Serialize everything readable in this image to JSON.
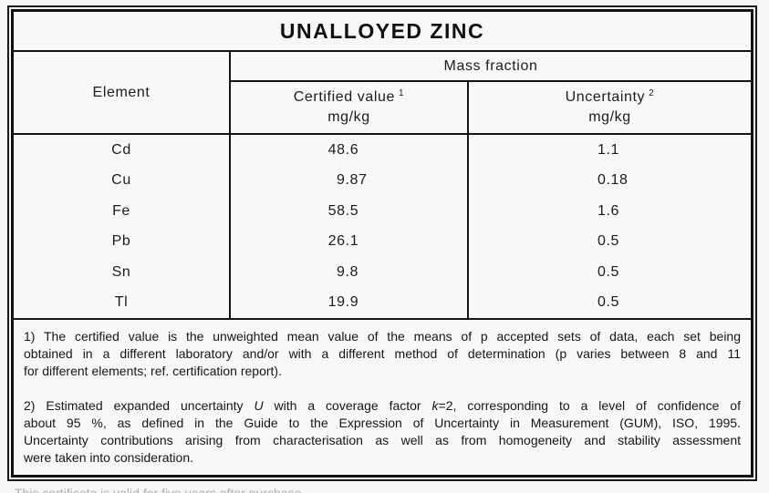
{
  "title": "UNALLOYED ZINC",
  "table": {
    "col_element": "Element",
    "group_header": "Mass fraction",
    "col_certified": {
      "label": "Certified value",
      "sup": "1",
      "unit": "mg/kg"
    },
    "col_uncertainty": {
      "label": "Uncertainty",
      "sup": "2",
      "unit": "mg/kg"
    },
    "rows": [
      {
        "element": "Cd",
        "certified": "48.6",
        "uncertainty": "1.1"
      },
      {
        "element": "Cu",
        "certified": "9.87",
        "uncertainty": "0.18"
      },
      {
        "element": "Fe",
        "certified": "58.5",
        "uncertainty": "1.6"
      },
      {
        "element": "Pb",
        "certified": "26.1",
        "uncertainty": "0.5"
      },
      {
        "element": "Sn",
        "certified": "9.8",
        "uncertainty": "0.5"
      },
      {
        "element": "Tl",
        "certified": "19.9",
        "uncertainty": "0.5"
      }
    ]
  },
  "footnotes": {
    "note1_lines": [
      "1) The certified value is the unweighted mean value of the means of p accepted sets of data, each set being",
      "obtained in a different laboratory and/or with a different method of determination (p varies between 8 and 11",
      "for different elements; ref. certification report)."
    ],
    "note2_line1_parts": [
      "2) Estimated expanded uncertainty ",
      "U",
      " with a coverage factor ",
      "k",
      "=2, corresponding to a level of confidence of"
    ],
    "note2_line2": "about 95 %, as defined in the Guide to the Expression of Uncertainty in Measurement (GUM), ISO, 1995.",
    "note2_line3": "Uncertainty contributions arising from characterisation as well as from homogeneity and stability assessment",
    "note2_line4": "were taken into consideration."
  },
  "footer": {
    "clipped_text": "This certificate is valid for five years after purchase."
  },
  "colors": {
    "border": "#141414",
    "text": "#1c1c1c",
    "background": "#f8f8f6"
  }
}
